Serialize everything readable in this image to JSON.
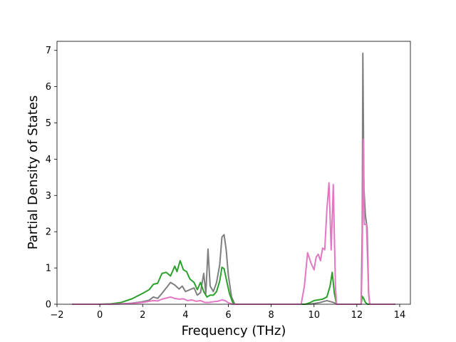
{
  "chart_data": {
    "type": "line",
    "title": "",
    "xlabel": "Frequency (THz)",
    "ylabel": "Partial Density of States",
    "xlim": [
      -2,
      14.5
    ],
    "ylim": [
      0,
      7.25
    ],
    "xticks": [
      -2,
      0,
      2,
      4,
      6,
      8,
      10,
      12,
      14
    ],
    "yticks": [
      0,
      1,
      2,
      3,
      4,
      5,
      6,
      7
    ],
    "grid": false,
    "legend": "none",
    "series": [
      {
        "color": "#7f7f7f",
        "points": [
          [
            -1.3,
            0
          ],
          [
            0,
            0
          ],
          [
            0.5,
            0.003
          ],
          [
            1,
            0.01
          ],
          [
            1.5,
            0.03
          ],
          [
            2,
            0.07
          ],
          [
            2.3,
            0.11
          ],
          [
            2.5,
            0.2
          ],
          [
            2.7,
            0.16
          ],
          [
            2.9,
            0.3
          ],
          [
            3.1,
            0.45
          ],
          [
            3.3,
            0.6
          ],
          [
            3.5,
            0.53
          ],
          [
            3.7,
            0.42
          ],
          [
            3.85,
            0.5
          ],
          [
            4,
            0.35
          ],
          [
            4.2,
            0.4
          ],
          [
            4.4,
            0.45
          ],
          [
            4.55,
            0.25
          ],
          [
            4.7,
            0.32
          ],
          [
            4.85,
            0.85
          ],
          [
            4.95,
            0.3
          ],
          [
            5.05,
            1.52
          ],
          [
            5.15,
            0.5
          ],
          [
            5.3,
            0.35
          ],
          [
            5.45,
            0.6
          ],
          [
            5.6,
            1.1
          ],
          [
            5.7,
            1.85
          ],
          [
            5.8,
            1.92
          ],
          [
            5.9,
            1.5
          ],
          [
            6,
            0.8
          ],
          [
            6.15,
            0.2
          ],
          [
            6.3,
            0
          ],
          [
            9.5,
            0
          ],
          [
            9.9,
            0.01
          ],
          [
            10.3,
            0.05
          ],
          [
            10.6,
            0.1
          ],
          [
            10.9,
            0.05
          ],
          [
            11.1,
            0
          ],
          [
            12.2,
            0
          ],
          [
            12.25,
            2.0
          ],
          [
            12.28,
            6.92
          ],
          [
            12.33,
            3.2
          ],
          [
            12.4,
            2.45
          ],
          [
            12.48,
            2.1
          ],
          [
            12.55,
            0.3
          ],
          [
            12.6,
            0
          ],
          [
            13.8,
            0
          ]
        ]
      },
      {
        "color": "#2ca02c",
        "points": [
          [
            -1.3,
            0
          ],
          [
            0,
            0
          ],
          [
            0.5,
            0.01
          ],
          [
            1,
            0.05
          ],
          [
            1.5,
            0.15
          ],
          [
            2,
            0.3
          ],
          [
            2.3,
            0.4
          ],
          [
            2.5,
            0.55
          ],
          [
            2.7,
            0.58
          ],
          [
            2.9,
            0.85
          ],
          [
            3.1,
            0.88
          ],
          [
            3.3,
            0.78
          ],
          [
            3.5,
            1.05
          ],
          [
            3.6,
            0.9
          ],
          [
            3.75,
            1.2
          ],
          [
            3.9,
            0.95
          ],
          [
            4.05,
            0.9
          ],
          [
            4.2,
            0.7
          ],
          [
            4.4,
            0.6
          ],
          [
            4.55,
            0.4
          ],
          [
            4.7,
            0.6
          ],
          [
            4.85,
            0.35
          ],
          [
            5,
            0.2
          ],
          [
            5.15,
            0.25
          ],
          [
            5.3,
            0.25
          ],
          [
            5.45,
            0.35
          ],
          [
            5.6,
            0.65
          ],
          [
            5.7,
            1.02
          ],
          [
            5.8,
            0.98
          ],
          [
            5.9,
            0.7
          ],
          [
            6.05,
            0.3
          ],
          [
            6.2,
            0.05
          ],
          [
            6.3,
            0
          ],
          [
            9.6,
            0
          ],
          [
            9.8,
            0.04
          ],
          [
            10,
            0.1
          ],
          [
            10.2,
            0.12
          ],
          [
            10.4,
            0.14
          ],
          [
            10.6,
            0.2
          ],
          [
            10.75,
            0.5
          ],
          [
            10.85,
            0.88
          ],
          [
            10.95,
            0.3
          ],
          [
            11.05,
            0
          ],
          [
            12.2,
            0
          ],
          [
            12.25,
            0.22
          ],
          [
            12.3,
            0.18
          ],
          [
            12.4,
            0.05
          ],
          [
            12.5,
            0
          ],
          [
            13.8,
            0
          ]
        ]
      },
      {
        "color": "#e377c2",
        "points": [
          [
            -1.3,
            0
          ],
          [
            0,
            0
          ],
          [
            0.5,
            0.002
          ],
          [
            1,
            0.01
          ],
          [
            1.5,
            0.02
          ],
          [
            2,
            0.05
          ],
          [
            2.3,
            0.08
          ],
          [
            2.5,
            0.1
          ],
          [
            2.7,
            0.09
          ],
          [
            2.9,
            0.14
          ],
          [
            3.1,
            0.17
          ],
          [
            3.3,
            0.2
          ],
          [
            3.5,
            0.16
          ],
          [
            3.7,
            0.14
          ],
          [
            3.9,
            0.15
          ],
          [
            4.1,
            0.1
          ],
          [
            4.3,
            0.12
          ],
          [
            4.5,
            0.08
          ],
          [
            4.7,
            0.1
          ],
          [
            4.9,
            0.05
          ],
          [
            5.1,
            0.05
          ],
          [
            5.3,
            0.07
          ],
          [
            5.5,
            0.08
          ],
          [
            5.7,
            0.12
          ],
          [
            5.85,
            0.1
          ],
          [
            6,
            0.04
          ],
          [
            6.2,
            0
          ],
          [
            9.4,
            0
          ],
          [
            9.55,
            0.5
          ],
          [
            9.7,
            1.42
          ],
          [
            9.85,
            1.15
          ],
          [
            10,
            0.95
          ],
          [
            10.1,
            1.3
          ],
          [
            10.2,
            1.38
          ],
          [
            10.3,
            1.2
          ],
          [
            10.4,
            1.55
          ],
          [
            10.5,
            1.5
          ],
          [
            10.6,
            2.6
          ],
          [
            10.7,
            3.35
          ],
          [
            10.8,
            1.5
          ],
          [
            10.9,
            3.3
          ],
          [
            11,
            0.5
          ],
          [
            11.05,
            0
          ],
          [
            12.2,
            0
          ],
          [
            12.25,
            1.2
          ],
          [
            12.3,
            4.55
          ],
          [
            12.35,
            2.2
          ],
          [
            12.45,
            2.2
          ],
          [
            12.55,
            0.3
          ],
          [
            12.6,
            0
          ],
          [
            13.8,
            0
          ]
        ]
      }
    ]
  }
}
